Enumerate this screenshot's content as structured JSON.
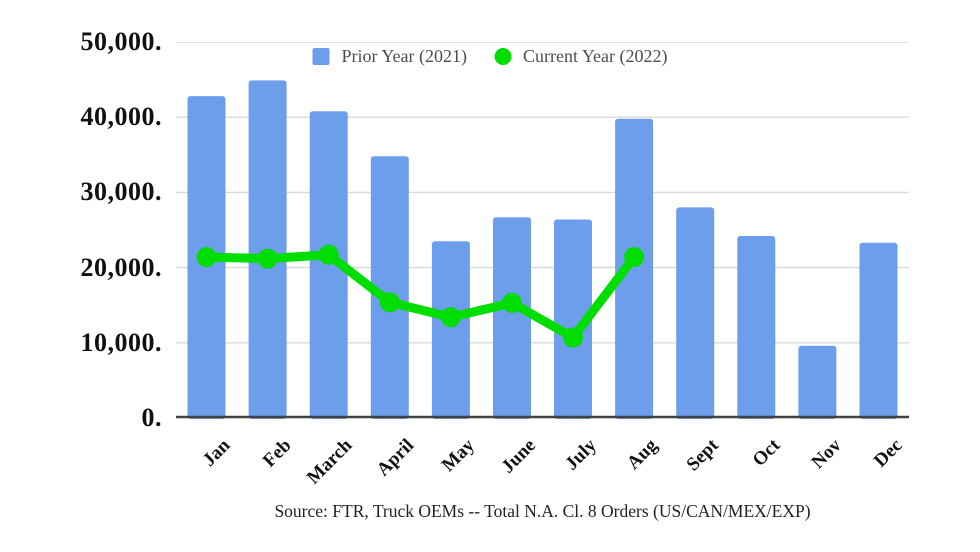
{
  "legend": {
    "prior_label": "Prior Year (2021)",
    "current_label": "Current Year (2022)"
  },
  "footer": {
    "source_text": "Source: FTR, Truck OEMs -- Total N.A. Cl. 8 Orders (US/CAN/MEX/EXP)"
  },
  "colors": {
    "bar": "#6d9eeb",
    "line": "#00dd00",
    "grid": "#d9d9d9",
    "axis": "#424242",
    "text": "#111111",
    "legend_text": "#4d4d4d"
  },
  "chart_data": {
    "type": "combo",
    "title": "",
    "xlabel": "",
    "ylabel": "",
    "categories": [
      "Jan",
      "Feb",
      "March",
      "April",
      "May",
      "June",
      "July",
      "Aug",
      "Sept",
      "Oct",
      "Nov",
      "Dec"
    ],
    "series": [
      {
        "name": "Prior Year (2021)",
        "type": "bar",
        "color": "#6d9eeb",
        "values": [
          42800,
          44900,
          40800,
          34800,
          23500,
          26700,
          26400,
          39800,
          28000,
          24200,
          9600,
          23300
        ]
      },
      {
        "name": "Current Year (2022)",
        "type": "line",
        "color": "#00dd00",
        "values": [
          21400,
          21200,
          21700,
          15400,
          13400,
          15300,
          10700,
          21400,
          null,
          null,
          null,
          null
        ]
      }
    ],
    "ylim": [
      0,
      50000
    ],
    "ytick_step": 10000,
    "ytick_labels": [
      "50,000.",
      "40,000.",
      "30,000.",
      "20,000.",
      "10,000.",
      "0."
    ],
    "grid": true,
    "legend_position": "top-center"
  }
}
